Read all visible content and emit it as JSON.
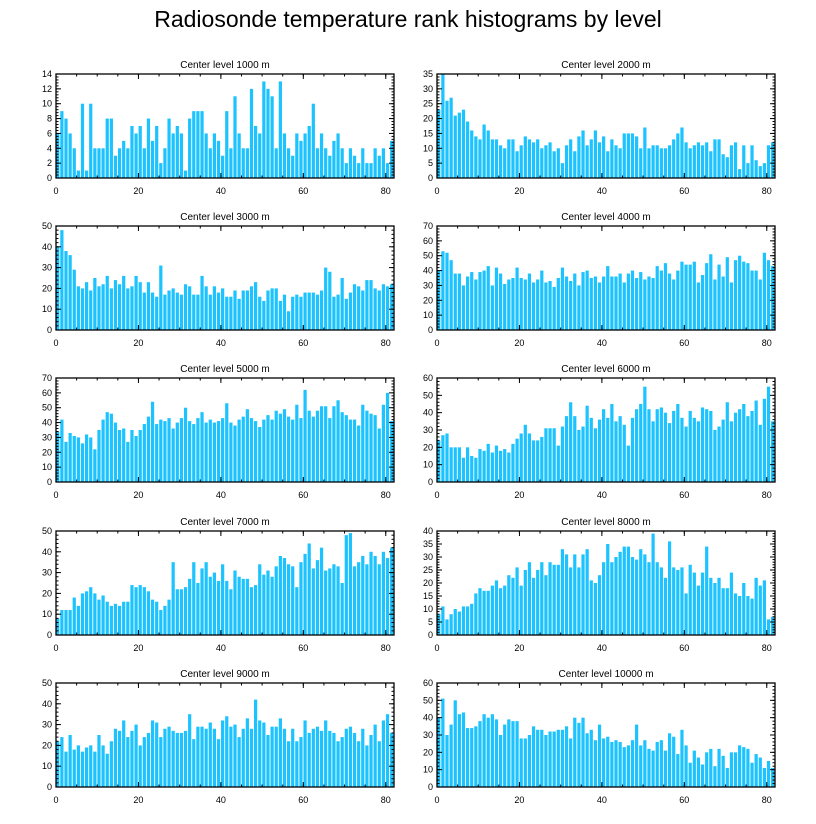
{
  "page": {
    "title": "Radiosonde temperature rank histograms by level",
    "bar_color": "#1cc3ff",
    "frame_color": "#000000"
  },
  "chart_data": [
    {
      "type": "bar",
      "title": "Center level 1000 m",
      "xlim": [
        0,
        82
      ],
      "ylim": [
        0,
        14
      ],
      "xticks": [
        0,
        20,
        40,
        60,
        80
      ],
      "yticks": [
        0,
        2,
        4,
        6,
        8,
        10,
        12,
        14
      ],
      "values": [
        6,
        9,
        8,
        6,
        4,
        1,
        10,
        1,
        10,
        4,
        4,
        4,
        8,
        8,
        3,
        4,
        5,
        4,
        7,
        6,
        7,
        4,
        8,
        5,
        7,
        2,
        4,
        8,
        6,
        7,
        6,
        1,
        8,
        9,
        9,
        9,
        6,
        4,
        6,
        5,
        3,
        9,
        4,
        11,
        6,
        4,
        4,
        12,
        7,
        6,
        13,
        12,
        11,
        4,
        13,
        6,
        4,
        3,
        6,
        5,
        6,
        7,
        10,
        4,
        6,
        4,
        3,
        5,
        6,
        4,
        2,
        4,
        3,
        2,
        4,
        2,
        2,
        4,
        3,
        4,
        2,
        5
      ]
    },
    {
      "type": "bar",
      "title": "Center level 2000 m",
      "xlim": [
        0,
        82
      ],
      "ylim": [
        0,
        35
      ],
      "xticks": [
        0,
        20,
        40,
        60,
        80
      ],
      "yticks": [
        0,
        5,
        10,
        15,
        20,
        25,
        30,
        35
      ],
      "values": [
        23,
        35,
        26,
        27,
        21,
        22,
        23,
        19,
        16,
        14,
        13,
        18,
        16,
        13,
        13,
        11,
        10,
        13,
        13,
        9,
        11,
        14,
        13,
        12,
        13,
        10,
        11,
        12,
        9,
        10,
        5,
        11,
        13,
        9,
        14,
        16,
        11,
        13,
        16,
        12,
        14,
        9,
        13,
        11,
        10,
        15,
        15,
        15,
        14,
        10,
        17,
        10,
        11,
        11,
        10,
        10,
        11,
        13,
        15,
        17,
        12,
        10,
        11,
        12,
        11,
        12,
        9,
        13,
        13,
        8,
        7,
        11,
        12,
        3,
        11,
        5,
        11,
        6,
        4,
        5,
        11,
        12
      ]
    },
    {
      "type": "bar",
      "title": "Center level 3000 m",
      "xlim": [
        0,
        82
      ],
      "ylim": [
        0,
        50
      ],
      "xticks": [
        0,
        20,
        40,
        60,
        80
      ],
      "yticks": [
        0,
        10,
        20,
        30,
        40,
        50
      ],
      "values": [
        40,
        48,
        38,
        36,
        29,
        21,
        20,
        23,
        19,
        25,
        21,
        22,
        26,
        20,
        24,
        22,
        26,
        20,
        21,
        26,
        23,
        18,
        23,
        18,
        16,
        31,
        17,
        19,
        20,
        18,
        17,
        22,
        21,
        17,
        17,
        26,
        21,
        17,
        21,
        18,
        20,
        16,
        16,
        19,
        15,
        19,
        19,
        21,
        23,
        16,
        14,
        19,
        20,
        20,
        14,
        17,
        9,
        16,
        17,
        16,
        18,
        18,
        18,
        17,
        19,
        30,
        28,
        16,
        17,
        25,
        15,
        18,
        22,
        21,
        19,
        24,
        24,
        20,
        19,
        22,
        21,
        22
      ]
    },
    {
      "type": "bar",
      "title": "Center level 4000 m",
      "xlim": [
        0,
        82
      ],
      "ylim": [
        0,
        70
      ],
      "xticks": [
        0,
        20,
        40,
        60,
        80
      ],
      "yticks": [
        0,
        10,
        20,
        30,
        40,
        50,
        60,
        70
      ],
      "values": [
        40,
        53,
        52,
        47,
        38,
        38,
        30,
        36,
        39,
        34,
        39,
        40,
        43,
        30,
        42,
        38,
        31,
        34,
        35,
        42,
        35,
        34,
        38,
        32,
        34,
        40,
        32,
        33,
        29,
        35,
        42,
        36,
        33,
        38,
        30,
        39,
        40,
        35,
        36,
        32,
        36,
        43,
        36,
        36,
        38,
        32,
        38,
        40,
        35,
        39,
        34,
        36,
        35,
        43,
        40,
        45,
        38,
        34,
        40,
        46,
        44,
        44,
        46,
        32,
        37,
        45,
        51,
        34,
        44,
        36,
        49,
        32,
        47,
        50,
        46,
        45,
        40,
        40,
        34,
        52,
        47,
        43
      ]
    },
    {
      "type": "bar",
      "title": "Center level 5000 m",
      "xlim": [
        0,
        82
      ],
      "ylim": [
        0,
        70
      ],
      "xticks": [
        0,
        20,
        40,
        60,
        80
      ],
      "yticks": [
        0,
        10,
        20,
        30,
        40,
        50,
        60,
        70
      ],
      "values": [
        34,
        42,
        27,
        33,
        31,
        30,
        26,
        32,
        30,
        22,
        35,
        42,
        47,
        46,
        40,
        35,
        36,
        27,
        35,
        31,
        35,
        39,
        44,
        54,
        39,
        42,
        41,
        43,
        36,
        40,
        43,
        50,
        41,
        39,
        43,
        47,
        40,
        42,
        40,
        41,
        43,
        53,
        40,
        38,
        42,
        44,
        49,
        43,
        41,
        37,
        42,
        45,
        42,
        48,
        46,
        49,
        44,
        42,
        52,
        43,
        62,
        48,
        44,
        48,
        51,
        51,
        43,
        51,
        55,
        47,
        45,
        42,
        42,
        38,
        52,
        48,
        46,
        45,
        36,
        52,
        60,
        41
      ]
    },
    {
      "type": "bar",
      "title": "Center level 6000 m",
      "xlim": [
        0,
        82
      ],
      "ylim": [
        0,
        60
      ],
      "xticks": [
        0,
        20,
        40,
        60,
        80
      ],
      "yticks": [
        0,
        10,
        20,
        30,
        40,
        50,
        60
      ],
      "values": [
        24,
        27,
        28,
        20,
        20,
        20,
        14,
        20,
        15,
        14,
        19,
        18,
        22,
        17,
        21,
        18,
        19,
        17,
        22,
        25,
        28,
        33,
        28,
        24,
        24,
        26,
        31,
        31,
        31,
        21,
        32,
        38,
        46,
        38,
        30,
        32,
        44,
        37,
        31,
        36,
        42,
        37,
        45,
        35,
        38,
        33,
        21,
        37,
        42,
        45,
        55,
        42,
        35,
        42,
        43,
        40,
        34,
        41,
        45,
        37,
        32,
        41,
        37,
        35,
        43,
        42,
        41,
        30,
        32,
        36,
        46,
        35,
        40,
        42,
        45,
        38,
        41,
        47,
        33,
        48,
        55,
        35
      ]
    },
    {
      "type": "bar",
      "title": "Center level 7000 m",
      "xlim": [
        0,
        82
      ],
      "ylim": [
        0,
        50
      ],
      "xticks": [
        0,
        20,
        40,
        60,
        80
      ],
      "yticks": [
        0,
        10,
        20,
        30,
        40,
        50
      ],
      "values": [
        8,
        12,
        12,
        12,
        18,
        14,
        20,
        21,
        23,
        20,
        17,
        19,
        16,
        14,
        15,
        14,
        16,
        16,
        24,
        23,
        24,
        23,
        21,
        17,
        16,
        12,
        14,
        17,
        35,
        22,
        22,
        23,
        27,
        35,
        25,
        32,
        35,
        28,
        30,
        26,
        34,
        26,
        22,
        31,
        28,
        27,
        27,
        23,
        24,
        34,
        29,
        31,
        28,
        33,
        38,
        37,
        34,
        33,
        23,
        35,
        39,
        44,
        32,
        36,
        42,
        31,
        32,
        34,
        33,
        25,
        48,
        49,
        33,
        35,
        38,
        34,
        40,
        38,
        34,
        40,
        37,
        42
      ]
    },
    {
      "type": "bar",
      "title": "Center level 8000 m",
      "xlim": [
        0,
        82
      ],
      "ylim": [
        0,
        40
      ],
      "xticks": [
        0,
        20,
        40,
        60,
        80
      ],
      "yticks": [
        0,
        5,
        10,
        15,
        20,
        25,
        30,
        35,
        40
      ],
      "values": [
        8,
        11,
        6,
        8,
        10,
        9,
        11,
        11,
        12,
        16,
        18,
        17,
        17,
        19,
        21,
        18,
        19,
        23,
        22,
        26,
        19,
        25,
        28,
        22,
        25,
        28,
        23,
        28,
        27,
        27,
        33,
        31,
        26,
        31,
        26,
        31,
        33,
        21,
        20,
        23,
        28,
        35,
        28,
        30,
        32,
        34,
        34,
        30,
        29,
        33,
        31,
        28,
        39,
        28,
        26,
        22,
        36,
        26,
        25,
        26,
        16,
        27,
        24,
        19,
        24,
        34,
        22,
        20,
        22,
        18,
        18,
        24,
        16,
        15,
        20,
        15,
        14,
        22,
        19,
        21,
        6,
        7
      ]
    },
    {
      "type": "bar",
      "title": "Center level 9000 m",
      "xlim": [
        0,
        82
      ],
      "ylim": [
        0,
        50
      ],
      "xticks": [
        0,
        20,
        40,
        60,
        80
      ],
      "yticks": [
        0,
        10,
        20,
        30,
        40,
        50
      ],
      "values": [
        22,
        24,
        17,
        25,
        18,
        20,
        17,
        19,
        20,
        17,
        25,
        20,
        16,
        22,
        28,
        27,
        32,
        24,
        27,
        30,
        20,
        24,
        26,
        32,
        31,
        24,
        28,
        29,
        27,
        26,
        26,
        27,
        35,
        23,
        29,
        29,
        28,
        31,
        28,
        23,
        32,
        34,
        29,
        30,
        24,
        28,
        33,
        28,
        42,
        32,
        31,
        25,
        29,
        29,
        33,
        28,
        22,
        28,
        22,
        24,
        32,
        26,
        28,
        29,
        27,
        32,
        27,
        26,
        22,
        24,
        28,
        29,
        26,
        22,
        28,
        20,
        25,
        30,
        22,
        32,
        35,
        26
      ]
    },
    {
      "type": "bar",
      "title": "Center level 10000 m",
      "xlim": [
        0,
        82
      ],
      "ylim": [
        0,
        60
      ],
      "xticks": [
        0,
        20,
        40,
        60,
        80
      ],
      "yticks": [
        0,
        10,
        20,
        30,
        40,
        50,
        60
      ],
      "values": [
        40,
        51,
        30,
        36,
        50,
        42,
        43,
        34,
        34,
        35,
        38,
        42,
        40,
        42,
        39,
        30,
        36,
        39,
        38,
        38,
        28,
        28,
        30,
        35,
        33,
        33,
        30,
        32,
        32,
        33,
        33,
        35,
        28,
        40,
        37,
        40,
        31,
        33,
        27,
        36,
        28,
        29,
        26,
        27,
        26,
        23,
        24,
        27,
        36,
        24,
        27,
        22,
        21,
        26,
        27,
        21,
        31,
        29,
        19,
        33,
        24,
        14,
        21,
        17,
        13,
        20,
        22,
        12,
        22,
        18,
        11,
        20,
        20,
        24,
        23,
        22,
        14,
        19,
        17,
        11,
        15,
        11
      ]
    }
  ]
}
